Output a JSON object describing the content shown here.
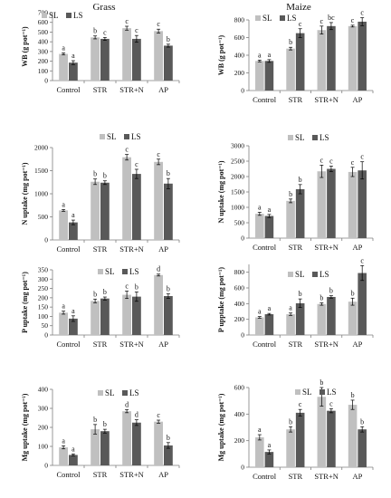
{
  "colors": {
    "SL": "#c0c0c0",
    "LS": "#595959",
    "axis": "#7f7f7f",
    "errorbar": "#000000"
  },
  "column_titles": [
    "Grass",
    "Maize"
  ],
  "chart_data": [
    {
      "type": "bar",
      "title": "Grass",
      "ylabel": "WB (g pot⁻¹)",
      "categories": [
        "Control",
        "STR",
        "STR+N",
        "AP"
      ],
      "ylim": [
        0,
        700
      ],
      "yticks": [
        0,
        100,
        200,
        300,
        400,
        500,
        600,
        700
      ],
      "legend": "top-left",
      "grid": false,
      "series": [
        {
          "name": "SL",
          "values": [
            275,
            445,
            540,
            510
          ],
          "errors": [
            10,
            15,
            20,
            20
          ],
          "letters": [
            "a",
            "b",
            "c",
            "c"
          ]
        },
        {
          "name": "LS",
          "values": [
            185,
            430,
            430,
            360
          ],
          "errors": [
            20,
            15,
            35,
            15
          ],
          "letters": [
            "a",
            "c",
            "c",
            "b"
          ]
        }
      ]
    },
    {
      "type": "bar",
      "title": "Maize",
      "ylabel": "WB (g pot⁻¹)",
      "categories": [
        "Control",
        "STR",
        "STR+N",
        "AP"
      ],
      "ylim": [
        0,
        800
      ],
      "yticks": [
        0,
        200,
        400,
        600,
        800
      ],
      "legend": "top-left",
      "grid": false,
      "series": [
        {
          "name": "SL",
          "values": [
            335,
            475,
            685,
            730
          ],
          "errors": [
            10,
            15,
            45,
            10
          ],
          "letters": [
            "a",
            "b",
            "c",
            "c"
          ]
        },
        {
          "name": "LS",
          "values": [
            335,
            650,
            730,
            780
          ],
          "errors": [
            15,
            50,
            40,
            45
          ],
          "letters": [
            "a",
            "c",
            "bc",
            "c"
          ]
        }
      ]
    },
    {
      "type": "bar",
      "title": "",
      "ylabel": "N uptake (mg pot⁻¹)",
      "categories": [
        "Control",
        "STR",
        "STR+N",
        "AP"
      ],
      "ylim": [
        0,
        2000
      ],
      "yticks": [
        0,
        500,
        1000,
        1500,
        2000
      ],
      "legend": "top-center",
      "grid": false,
      "series": [
        {
          "name": "SL",
          "values": [
            640,
            1260,
            1790,
            1690
          ],
          "errors": [
            20,
            60,
            60,
            60
          ],
          "letters": [
            "a",
            "b",
            "c",
            "c"
          ]
        },
        {
          "name": "LS",
          "values": [
            380,
            1240,
            1430,
            1220
          ],
          "errors": [
            50,
            40,
            100,
            110
          ],
          "letters": [
            "a",
            "b",
            "c",
            "b"
          ]
        }
      ]
    },
    {
      "type": "bar",
      "title": "",
      "ylabel": "N uptake (mg pot⁻¹)",
      "categories": [
        "Control",
        "STR",
        "STR+N",
        "AP"
      ],
      "ylim": [
        0,
        3000
      ],
      "yticks": [
        0,
        500,
        1000,
        1500,
        2000,
        2500,
        3000
      ],
      "legend": "top-center",
      "grid": false,
      "series": [
        {
          "name": "SL",
          "values": [
            790,
            1210,
            2170,
            2150
          ],
          "errors": [
            50,
            60,
            200,
            150
          ],
          "letters": [
            "a",
            "b",
            "c",
            "c"
          ]
        },
        {
          "name": "LS",
          "values": [
            720,
            1590,
            2250,
            2200
          ],
          "errors": [
            50,
            150,
            90,
            280
          ],
          "letters": [
            "a",
            "b",
            "c",
            "c"
          ]
        }
      ]
    },
    {
      "type": "bar",
      "title": "",
      "ylabel": "P uptake (mg pot⁻¹)",
      "categories": [
        "Control",
        "STR",
        "STR+N",
        "AP"
      ],
      "ylim": [
        0,
        350
      ],
      "yticks": [
        0,
        50,
        100,
        150,
        200,
        250,
        300,
        350
      ],
      "legend": "top-center",
      "grid": false,
      "series": [
        {
          "name": "SL",
          "values": [
            120,
            183,
            216,
            322
          ],
          "errors": [
            8,
            10,
            20,
            5
          ],
          "letters": [
            "a",
            "b",
            "c",
            "d"
          ]
        },
        {
          "name": "LS",
          "values": [
            88,
            196,
            206,
            209
          ],
          "errors": [
            15,
            8,
            25,
            12
          ],
          "letters": [
            "a",
            "b",
            "b",
            "b"
          ]
        }
      ]
    },
    {
      "type": "bar",
      "title": "",
      "ylabel": "P upptake (mg pot⁻¹)",
      "categories": [
        "Control",
        "STR",
        "STR+N",
        "AP"
      ],
      "ylim": [
        0,
        900
      ],
      "yticks": [
        0,
        200,
        400,
        600,
        800
      ],
      "legend": "top-center",
      "grid": false,
      "series": [
        {
          "name": "SL",
          "values": [
            225,
            265,
            395,
            425
          ],
          "errors": [
            10,
            15,
            15,
            45
          ],
          "letters": [
            "a",
            "a",
            "b",
            "b"
          ]
        },
        {
          "name": "LS",
          "values": [
            265,
            405,
            485,
            790
          ],
          "errors": [
            10,
            55,
            15,
            95
          ],
          "letters": [
            "a",
            "b",
            "b",
            "c"
          ]
        }
      ]
    },
    {
      "type": "bar",
      "title": "",
      "ylabel": "Mg uptake (mg pot⁻¹)",
      "categories": [
        "Control",
        "STR",
        "STR+N",
        "AP"
      ],
      "ylim": [
        0,
        400
      ],
      "yticks": [
        0,
        100,
        200,
        300,
        400
      ],
      "legend": "top-center",
      "grid": false,
      "series": [
        {
          "name": "SL",
          "values": [
            95,
            190,
            285,
            230
          ],
          "errors": [
            8,
            25,
            8,
            8
          ],
          "letters": [
            "a",
            "b",
            "d",
            "c"
          ]
        },
        {
          "name": "LS",
          "values": [
            55,
            180,
            225,
            105
          ],
          "errors": [
            5,
            10,
            15,
            15
          ],
          "letters": [
            "a",
            "b",
            "d",
            "b"
          ]
        }
      ]
    },
    {
      "type": "bar",
      "title": "",
      "ylabel": "Mg uptake (mg pot⁻¹)",
      "categories": [
        "Control",
        "STR",
        "STR+N",
        "AP"
      ],
      "ylim": [
        0,
        600
      ],
      "yticks": [
        0,
        200,
        400,
        600
      ],
      "legend": "top-center",
      "grid": false,
      "series": [
        {
          "name": "SL",
          "values": [
            225,
            285,
            530,
            470
          ],
          "errors": [
            20,
            20,
            70,
            35
          ],
          "letters": [
            "a",
            "b",
            "b",
            "b"
          ]
        },
        {
          "name": "LS",
          "values": [
            115,
            410,
            425,
            285
          ],
          "errors": [
            15,
            25,
            15,
            20
          ],
          "letters": [
            "a",
            "c",
            "c",
            "b"
          ]
        }
      ]
    }
  ]
}
